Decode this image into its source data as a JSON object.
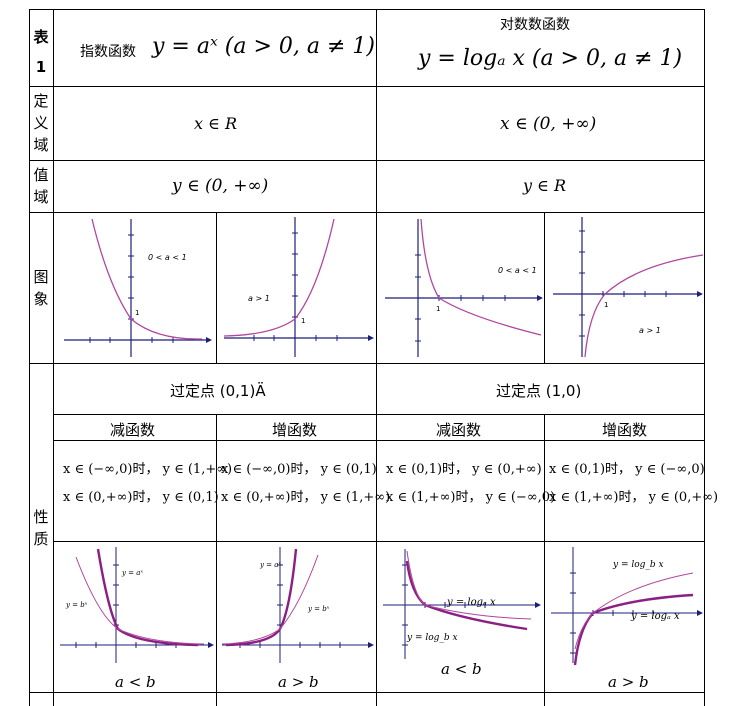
{
  "header": {
    "table_label": "表1",
    "exp_title": "指数函数",
    "exp_formula": "y = aˣ (a > 0, a ≠ 1)",
    "log_title": "对数数函数",
    "log_formula": "y = logₐ x (a > 0, a ≠ 1)"
  },
  "rows": {
    "domain_label": [
      "定",
      "义",
      "域"
    ],
    "domain_exp": "x ∈ R",
    "domain_log": "x ∈ (0, +∞)",
    "range_label": [
      "值",
      "域"
    ],
    "range_exp": "y ∈ (0, +∞)",
    "range_log": "y ∈ R",
    "graph_label": [
      "图",
      "象"
    ],
    "graph_exp_dec": "0 < a < 1",
    "graph_exp_inc": "a > 1",
    "graph_log_dec": "0 < a < 1",
    "graph_log_inc": "a > 1",
    "graph_tick_1": "1",
    "props_label": [
      "性",
      "质"
    ],
    "exp_fixed_point": "过定点 (0,1)Ä",
    "log_fixed_point": "过定点 (1,0)",
    "sub_headers": [
      "减函数",
      "增函数",
      "减函数",
      "增函数"
    ],
    "props": {
      "c1_l1": "x ∈ (−∞,0)时， y ∈ (1,+∞)",
      "c1_l2": "x ∈ (0,+∞)时， y ∈ (0,1)",
      "c2_l1": "x ∈ (−∞,0)时， y ∈ (0,1)",
      "c2_l2": "x ∈ (0,+∞)时， y ∈ (1,+∞)",
      "c3_l1": "x ∈ (0,1)时， y ∈ (0,+∞)",
      "c3_l2": "x ∈ (1,+∞)时， y ∈ (−∞,0)",
      "c4_l1": "x ∈ (0,1)时， y ∈ (−∞,0)",
      "c4_l2": "x ∈ (1,+∞)时， y ∈ (0,+∞)"
    },
    "compare": {
      "c1_caption": "a < b",
      "c2_caption": "a > b",
      "c3_caption": "a < b",
      "c4_caption": "a > b",
      "c1_ya": "y = aˣ",
      "c1_yb": "y = bˣ",
      "c2_ya": "y = aˣ",
      "c2_yb": "y = bˣ",
      "c3_la": "y = logₐ x",
      "c3_lb": "y = log_b x",
      "c4_lb": "y = log_b x",
      "c4_la": "y = logₐ x"
    }
  },
  "colors": {
    "curve": "#b0479e",
    "curve_dark": "#8a1f84",
    "axis": "#1c1f7a",
    "grid_line": "#000000"
  }
}
